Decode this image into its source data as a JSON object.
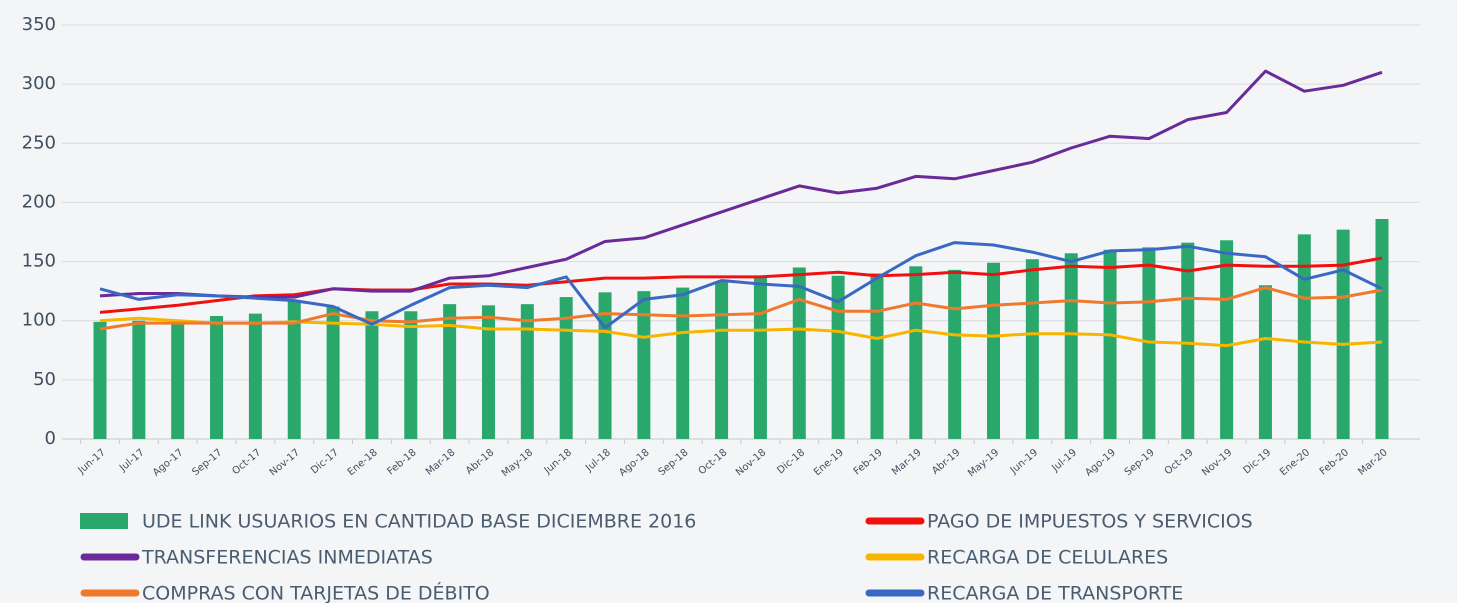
{
  "chart_data": {
    "type": "combo",
    "categories": [
      "Jun-17",
      "Jul-17",
      "Ago-17",
      "Sep-17",
      "Oct-17",
      "Nov-17",
      "Dic-17",
      "Ene-18",
      "Feb-18",
      "Mar-18",
      "Abr-18",
      "May-18",
      "Jun-18",
      "Jul-18",
      "Ago-18",
      "Sep-18",
      "Oct-18",
      "Nov-18",
      "Dic-18",
      "Ene-19",
      "Feb-19",
      "Mar-19",
      "Abr-19",
      "May-19",
      "Jun-19",
      "Jul-19",
      "Ago-19",
      "Sep-19",
      "Oct-19",
      "Nov-19",
      "Dic-19",
      "Ene-20",
      "Feb-20",
      "Mar-20"
    ],
    "ylim": [
      0,
      350
    ],
    "yticks": [
      0,
      50,
      100,
      150,
      200,
      250,
      300,
      350
    ],
    "grid": true,
    "legend": "bottom",
    "series": [
      {
        "name": "UDE LINK USUARIOS EN CANTIDAD BASE DICIEMBRE 2016",
        "type": "bar",
        "color": "#2aa86b",
        "values": [
          99,
          100,
          99,
          104,
          106,
          117,
          112,
          108,
          108,
          114,
          113,
          114,
          120,
          124,
          125,
          128,
          133,
          138,
          145,
          138,
          140,
          146,
          143,
          149,
          152,
          157,
          160,
          162,
          166,
          168,
          130,
          173,
          177,
          186
        ]
      },
      {
        "name": "PAGO DE IMPUESTOS Y SERVICIOS",
        "type": "line",
        "color": "#f01010",
        "values": [
          107,
          110,
          113,
          117,
          121,
          122,
          127,
          126,
          126,
          131,
          131,
          130,
          133,
          136,
          136,
          137,
          137,
          137,
          139,
          141,
          138,
          139,
          141,
          139,
          143,
          146,
          145,
          147,
          142,
          147,
          146,
          146,
          147,
          153
        ]
      },
      {
        "name": "TRANSFERENCIAS INMEDIATAS",
        "type": "line",
        "color": "#6a2a9a",
        "values": [
          121,
          123,
          123,
          121,
          120,
          120,
          127,
          125,
          125,
          136,
          138,
          145,
          152,
          167,
          170,
          181,
          192,
          203,
          214,
          208,
          212,
          222,
          220,
          227,
          234,
          246,
          256,
          254,
          270,
          276,
          311,
          294,
          299,
          310
        ]
      },
      {
        "name": "RECARGA DE CELULARES",
        "type": "line",
        "color": "#f7b500",
        "values": [
          100,
          102,
          100,
          98,
          98,
          99,
          98,
          97,
          95,
          96,
          93,
          93,
          92,
          91,
          86,
          90,
          92,
          92,
          93,
          91,
          85,
          92,
          88,
          87,
          89,
          89,
          88,
          82,
          81,
          79,
          85,
          82,
          80,
          82
        ]
      },
      {
        "name": "COMPRAS CON TARJETAS DE DÉBITO",
        "type": "line",
        "color": "#ef7a2e",
        "values": [
          93,
          98,
          98,
          98,
          98,
          98,
          106,
          100,
          99,
          102,
          103,
          100,
          102,
          106,
          105,
          104,
          105,
          106,
          118,
          108,
          108,
          115,
          110,
          113,
          115,
          117,
          115,
          116,
          119,
          118,
          128,
          119,
          120,
          126
        ]
      },
      {
        "name": "RECARGA DE TRANSPORTE",
        "type": "line",
        "color": "#3a69c4",
        "values": [
          127,
          118,
          122,
          121,
          119,
          117,
          112,
          97,
          113,
          128,
          130,
          128,
          137,
          94,
          118,
          122,
          134,
          131,
          129,
          116,
          136,
          155,
          166,
          164,
          158,
          150,
          159,
          160,
          163,
          157,
          154,
          135,
          143,
          127
        ]
      }
    ]
  }
}
